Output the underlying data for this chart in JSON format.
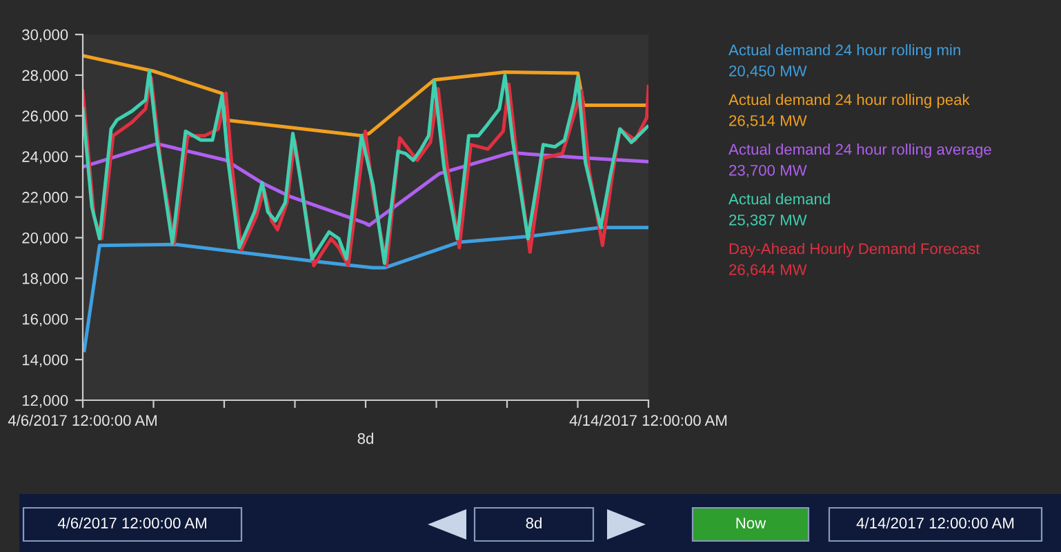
{
  "chart_data": {
    "type": "line",
    "xlim": [
      "2017-04-06T00:00",
      "2017-04-14T00:00"
    ],
    "ylim": [
      12000,
      30000
    ],
    "xticks": [
      {
        "value": "2017-04-06T00:00",
        "label": "4/6/2017 12:00:00 AM"
      },
      {
        "value": "2017-04-07T00:00",
        "label": null
      },
      {
        "value": "2017-04-08T00:00",
        "label": null
      },
      {
        "value": "2017-04-09T00:00",
        "label": null
      },
      {
        "value": "2017-04-10T00:00",
        "label": null
      },
      {
        "value": "2017-04-11T00:00",
        "label": null
      },
      {
        "value": "2017-04-12T00:00",
        "label": null
      },
      {
        "value": "2017-04-13T00:00",
        "label": null
      },
      {
        "value": "2017-04-14T00:00",
        "label": "4/14/2017 12:00:00 AM"
      }
    ],
    "yticks": [
      {
        "value": 12000,
        "label": "12,000"
      },
      {
        "value": 14000,
        "label": "14,000"
      },
      {
        "value": 16000,
        "label": "16,000"
      },
      {
        "value": 18000,
        "label": "18,000"
      },
      {
        "value": 20000,
        "label": "20,000"
      },
      {
        "value": 22000,
        "label": "22,000"
      },
      {
        "value": 24000,
        "label": "24,000"
      },
      {
        "value": 26000,
        "label": "26,000"
      },
      {
        "value": 28000,
        "label": "28,000"
      },
      {
        "value": 30000,
        "label": "30,000"
      }
    ],
    "legend": "right",
    "marker": "none",
    "line_style": "solid",
    "series": [
      {
        "name": "Actual demand 24 hour rolling min\n20,450 MW",
        "color": "#3fa0e0",
        "x": [
          "2017-04-06T00:30",
          "2017-04-06T05:42",
          "2017-04-07T07:00",
          "2017-04-09T05:48",
          "2017-04-10T02:30",
          "2017-04-10T06:24",
          "2017-04-11T07:48",
          "2017-04-12T07:00",
          "2017-04-13T07:42",
          "2017-04-14T00:00"
        ],
        "values": [
          14450,
          19620,
          19670,
          18850,
          18520,
          18520,
          19780,
          20060,
          20500,
          20500
        ]
      },
      {
        "name": "Actual demand 24 hour rolling peak\n26,514 MW",
        "color": "#f0a020",
        "x": [
          "2017-04-06T00:00",
          "2017-04-06T23:54",
          "2017-04-07T23:18",
          "2017-04-08T00:30",
          "2017-04-09T22:36",
          "2017-04-10T01:12",
          "2017-04-10T23:18",
          "2017-04-11T23:18",
          "2017-04-13T00:00",
          "2017-04-13T02:00",
          "2017-04-14T00:00"
        ],
        "values": [
          28960,
          28200,
          27100,
          25790,
          25020,
          25130,
          27770,
          28150,
          28100,
          26520,
          26520
        ]
      },
      {
        "name": "Actual demand 24 hour rolling average\n23,700 MW",
        "color": "#b060f0",
        "x": [
          "2017-04-06T00:00",
          "2017-04-07T01:12",
          "2017-04-08T00:36",
          "2017-04-08T12:48",
          "2017-04-08T21:54",
          "2017-04-09T23:48",
          "2017-04-10T01:12",
          "2017-04-10T09:36",
          "2017-04-11T01:00",
          "2017-04-12T01:18",
          "2017-04-13T02:36",
          "2017-04-14T00:00"
        ],
        "values": [
          23480,
          24620,
          23810,
          22700,
          22050,
          20720,
          20610,
          21500,
          23150,
          24180,
          23920,
          23740
        ]
      },
      {
        "name": "Day-Ahead Hourly Demand Forecast\n26,644 MW",
        "color": "#e03040",
        "x": [
          "2017-04-06T00:00",
          "2017-04-06T03:48",
          "2017-04-06T06:24",
          "2017-04-06T10:18",
          "2017-04-06T16:42",
          "2017-04-06T21:18",
          "2017-04-06T23:12",
          "2017-04-07T02:30",
          "2017-04-07T07:00",
          "2017-04-07T11:36",
          "2017-04-07T17:24",
          "2017-04-07T22:00",
          "2017-04-08T00:36",
          "2017-04-08T02:30",
          "2017-04-08T05:48",
          "2017-04-08T10:54",
          "2017-04-08T13:30",
          "2017-04-08T16:06",
          "2017-04-08T18:06",
          "2017-04-08T21:18",
          "2017-04-08T23:54",
          "2017-04-09T02:30",
          "2017-04-09T06:24",
          "2017-04-09T12:18",
          "2017-04-09T14:54",
          "2017-04-09T18:06",
          "2017-04-09T23:54",
          "2017-04-10T02:30",
          "2017-04-10T07:06",
          "2017-04-10T11:36",
          "2017-04-10T17:30",
          "2017-04-10T22:00",
          "2017-04-11T00:36",
          "2017-04-11T03:54",
          "2017-04-11T07:48",
          "2017-04-11T11:42",
          "2017-04-11T17:30",
          "2017-04-11T22:42",
          "2017-04-12T00:36",
          "2017-04-12T03:12",
          "2017-04-12T07:48",
          "2017-04-12T12:18",
          "2017-04-12T18:48",
          "2017-04-12T23:24",
          "2017-04-13T01:18",
          "2017-04-13T03:54",
          "2017-04-13T08:24",
          "2017-04-13T11:42",
          "2017-04-13T14:18",
          "2017-04-13T19:30",
          "2017-04-13T23:24",
          "2017-04-14T00:00"
        ],
        "values": [
          27220,
          21050,
          19950,
          25020,
          25680,
          26340,
          27880,
          23700,
          19730,
          25020,
          25020,
          25350,
          27110,
          23700,
          19400,
          21050,
          22380,
          20830,
          20390,
          21720,
          24800,
          22380,
          18630,
          19950,
          19510,
          18630,
          25240,
          22160,
          18630,
          24910,
          23810,
          24690,
          27330,
          23260,
          19510,
          24580,
          24360,
          25240,
          27550,
          24140,
          19290,
          23920,
          24140,
          26340,
          27220,
          23260,
          19620,
          23040,
          25350,
          24800,
          25900,
          27440
        ]
      },
      {
        "name": "Actual demand\n25,387 MW",
        "color": "#40d0b0",
        "x": [
          "2017-04-06T00:00",
          "2017-04-06T03:06",
          "2017-04-06T05:42",
          "2017-04-06T09:36",
          "2017-04-06T11:36",
          "2017-04-06T16:42",
          "2017-04-06T21:18",
          "2017-04-06T22:36",
          "2017-04-07T01:12",
          "2017-04-07T06:24",
          "2017-04-07T10:54",
          "2017-04-07T16:06",
          "2017-04-07T20:00",
          "2017-04-07T23:18",
          "2017-04-08T01:12",
          "2017-04-08T05:06",
          "2017-04-08T10:18",
          "2017-04-08T12:54",
          "2017-04-08T14:48",
          "2017-04-08T17:24",
          "2017-04-08T20:42",
          "2017-04-08T23:18",
          "2017-04-09T01:54",
          "2017-04-09T05:48",
          "2017-04-09T11:36",
          "2017-04-09T14:54",
          "2017-04-09T17:30",
          "2017-04-09T22:36",
          "2017-04-10T02:30",
          "2017-04-10T06:24",
          "2017-04-10T11:00",
          "2017-04-10T13:36",
          "2017-04-10T16:12",
          "2017-04-10T18:48",
          "2017-04-10T21:24",
          "2017-04-10T23:18",
          "2017-04-11T02:36",
          "2017-04-11T07:06",
          "2017-04-11T11:00",
          "2017-04-11T14:18",
          "2017-04-11T16:48",
          "2017-04-11T21:24",
          "2017-04-11T23:18",
          "2017-04-12T01:54",
          "2017-04-12T07:06",
          "2017-04-12T12:18",
          "2017-04-12T16:12",
          "2017-04-12T19:30",
          "2017-04-12T22:42",
          "2017-04-13T00:00",
          "2017-04-13T02:36",
          "2017-04-13T07:48",
          "2017-04-13T11:00",
          "2017-04-13T14:18",
          "2017-04-13T18:12",
          "2017-04-13T22:06",
          "2017-04-13T23:36"
        ],
        "values": [
          26340,
          21500,
          19950,
          25350,
          25790,
          26230,
          26780,
          28210,
          24800,
          19730,
          25240,
          24800,
          24800,
          27000,
          23920,
          19510,
          21270,
          22710,
          21270,
          20830,
          21720,
          25130,
          22820,
          18960,
          20280,
          19950,
          18960,
          25020,
          22600,
          18740,
          24250,
          24140,
          23810,
          24360,
          25020,
          27710,
          23480,
          19950,
          25020,
          25020,
          25460,
          26340,
          27990,
          24800,
          19950,
          24580,
          24470,
          24800,
          26670,
          27880,
          23700,
          20500,
          23040,
          25350,
          24690,
          25240,
          25460
        ]
      }
    ],
    "xlabel": "8d",
    "annotations": [
      "4/6/2017 12:00:00 AM",
      "8d",
      "Now",
      "4/14/2017 12:00:00 AM"
    ]
  }
}
